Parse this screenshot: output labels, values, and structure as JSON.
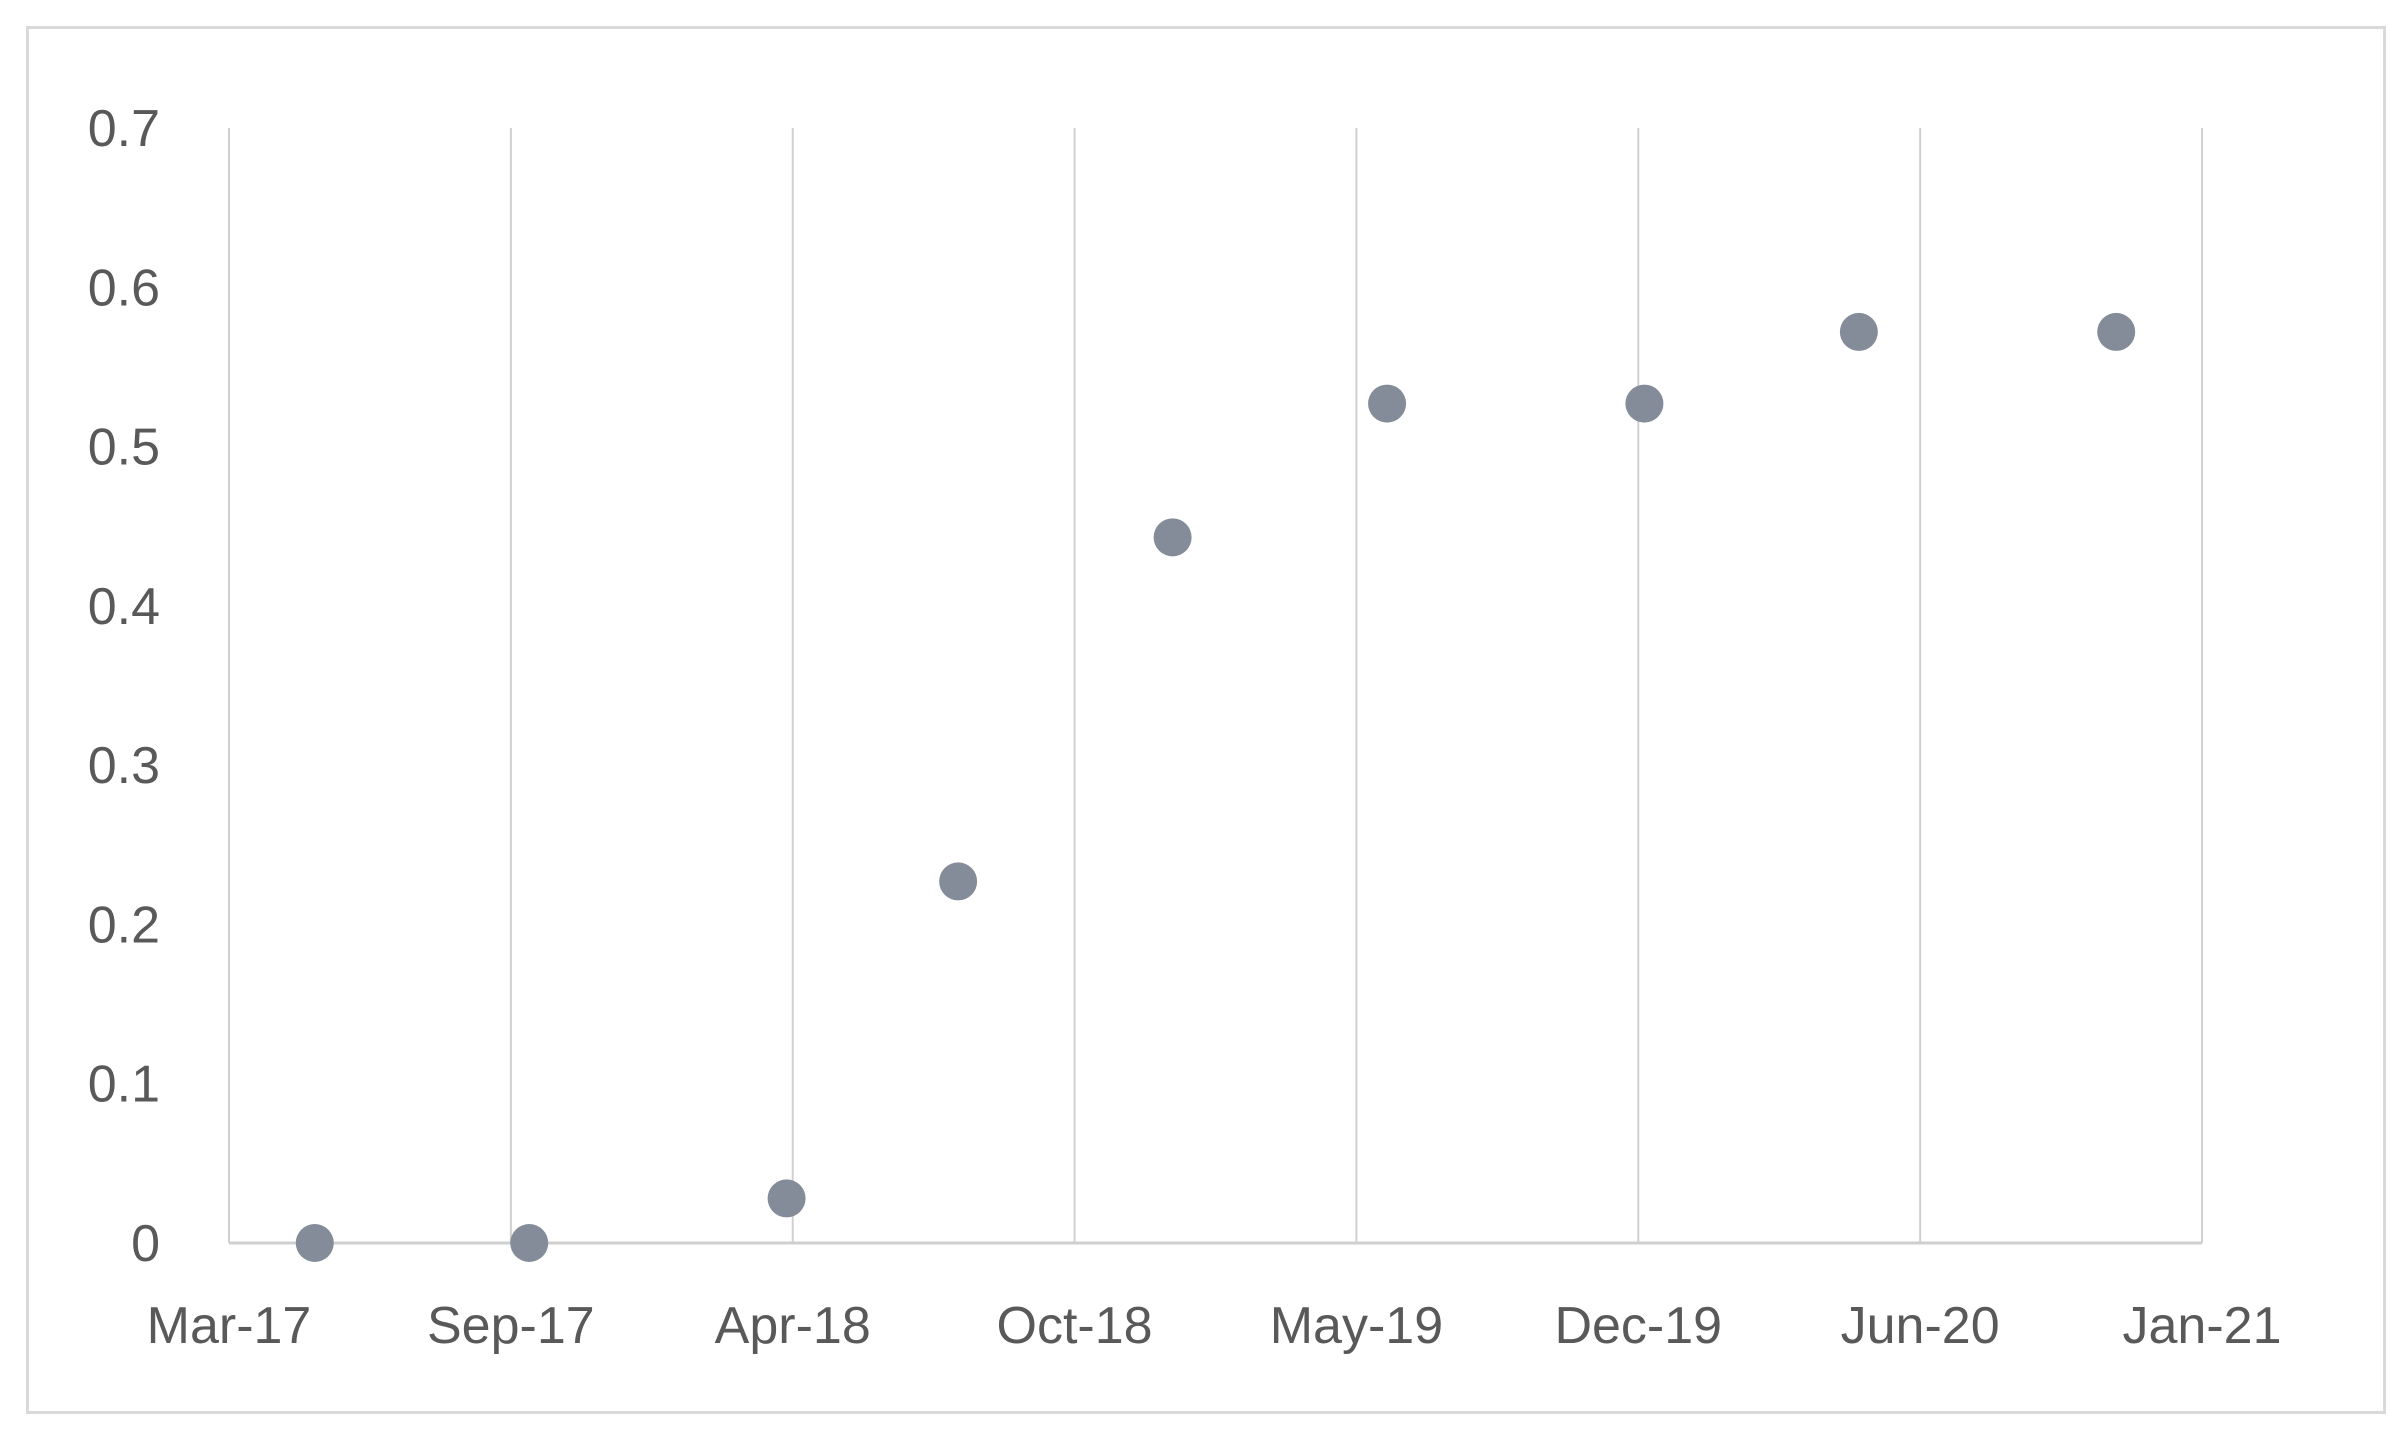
{
  "chart_data": {
    "type": "scatter",
    "title": "",
    "xlabel": "",
    "ylabel": "",
    "x_ticks": [
      "Mar-17",
      "Sep-17",
      "Apr-18",
      "Oct-18",
      "May-19",
      "Dec-19",
      "Jun-20",
      "Jan-21"
    ],
    "y_ticks": [
      "0",
      "0.1",
      "0.2",
      "0.3",
      "0.4",
      "0.5",
      "0.6",
      "0.7"
    ],
    "xlim": [
      "2017-03",
      "2021-01"
    ],
    "ylim": [
      0,
      0.7
    ],
    "grid": "vertical",
    "series": [
      {
        "color": "#848c99",
        "points": [
          {
            "x": "2017-05",
            "y": 0
          },
          {
            "x": "2017-10",
            "y": 0
          },
          {
            "x": "2018-04",
            "y": 0.028
          },
          {
            "x": "2018-08",
            "y": 0.227
          },
          {
            "x": "2019-01",
            "y": 0.443
          },
          {
            "x": "2019-06",
            "y": 0.527
          },
          {
            "x": "2019-12",
            "y": 0.527
          },
          {
            "x": "2020-05",
            "y": 0.572
          },
          {
            "x": "2020-11",
            "y": 0.572
          }
        ]
      }
    ]
  }
}
